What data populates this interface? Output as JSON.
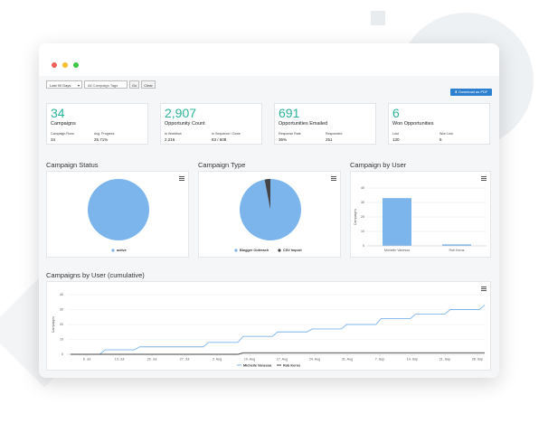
{
  "window_controls": {
    "close_color": "#f25f58",
    "minimize_color": "#fbbe2e",
    "maximize_color": "#3cc840"
  },
  "filters": {
    "date_range": "Last 90 Days",
    "tags_placeholder": "All Campaign Tags",
    "go_label": "Go",
    "clear_label": "Clear"
  },
  "download_pdf_label": "Download as PDF",
  "accent_color": "#2bb39a",
  "kpis": [
    {
      "value": "34",
      "label": "Campaigns",
      "subs": [
        {
          "label": "Campaign Runs",
          "value": "34"
        },
        {
          "label": "Avg. Progress",
          "value": "25.71%"
        }
      ]
    },
    {
      "value": "2,907",
      "label": "Opportunity Count",
      "subs": [
        {
          "label": "In Workflow",
          "value": "2,216"
        },
        {
          "label": "In Sequence / Done",
          "value": "83 / 608"
        }
      ]
    },
    {
      "value": "691",
      "label": "Opportunities Emailed",
      "subs": [
        {
          "label": "Response Rate",
          "value": "36%"
        },
        {
          "label": "Responded",
          "value": "251"
        }
      ]
    },
    {
      "value": "6",
      "label": "Won Opportunities",
      "subs": [
        {
          "label": "Lost",
          "value": "130"
        },
        {
          "label": "Won Link",
          "value": "6"
        }
      ]
    }
  ],
  "sections": {
    "campaign_status": "Campaign Status",
    "campaign_type": "Campaign Type",
    "campaign_by_user": "Campaign by User",
    "campaigns_by_user_cumulative": "Campaigns by User (cumulative)"
  },
  "chart_data": [
    {
      "type": "pie",
      "title": "Campaign Status",
      "slices": [
        {
          "name": "active",
          "value": 100,
          "color": "#7cb5ec"
        }
      ],
      "legend": "bottom"
    },
    {
      "type": "pie",
      "title": "Campaign Type",
      "slices": [
        {
          "name": "Blogger Outreach",
          "value": 97,
          "color": "#7cb5ec"
        },
        {
          "name": "CSV Import",
          "value": 3,
          "color": "#434348"
        }
      ],
      "legend": "bottom"
    },
    {
      "type": "bar",
      "title": "Campaign by User",
      "categories": [
        "Michelle Vanessa",
        "Rob Kerns"
      ],
      "values": [
        33,
        1
      ],
      "ylabel": "Campaigns",
      "ylim": [
        0,
        40
      ],
      "yticks": [
        "0",
        "10",
        "20",
        "30",
        "40"
      ],
      "color": "#7cb5ec"
    },
    {
      "type": "line",
      "title": "Campaigns by User (cumulative)",
      "x": [
        "3. Jul",
        "10. Jul",
        "17. Jul",
        "24. Jul",
        "31. Jul",
        "7. Aug",
        "14. Aug",
        "21. Aug",
        "28. Aug",
        "4. Sep",
        "11. Sep",
        "18. Sep",
        "25. Sep"
      ],
      "xticks": [
        "6. Jul",
        "13. Jul",
        "20. Jul",
        "27. Jul",
        "3. Aug",
        "10. Aug",
        "17. Aug",
        "24. Aug",
        "31. Aug",
        "7. Sep",
        "14. Sep",
        "21. Sep",
        "28. Sep"
      ],
      "ylabel": "Campaigns",
      "ylim": [
        0,
        40
      ],
      "yticks": [
        "0",
        "10",
        "20",
        "30",
        "40"
      ],
      "series": [
        {
          "name": "Michelle Vanessa",
          "color": "#7cb5ec",
          "values": [
            0,
            3,
            5,
            5,
            8,
            12,
            15,
            17,
            20,
            24,
            27,
            30,
            33
          ]
        },
        {
          "name": "Rob Kerns",
          "color": "#434348",
          "values": [
            0,
            0,
            0,
            0,
            0,
            1,
            1,
            1,
            1,
            1,
            1,
            1,
            1
          ]
        }
      ],
      "legend": "bottom"
    }
  ]
}
